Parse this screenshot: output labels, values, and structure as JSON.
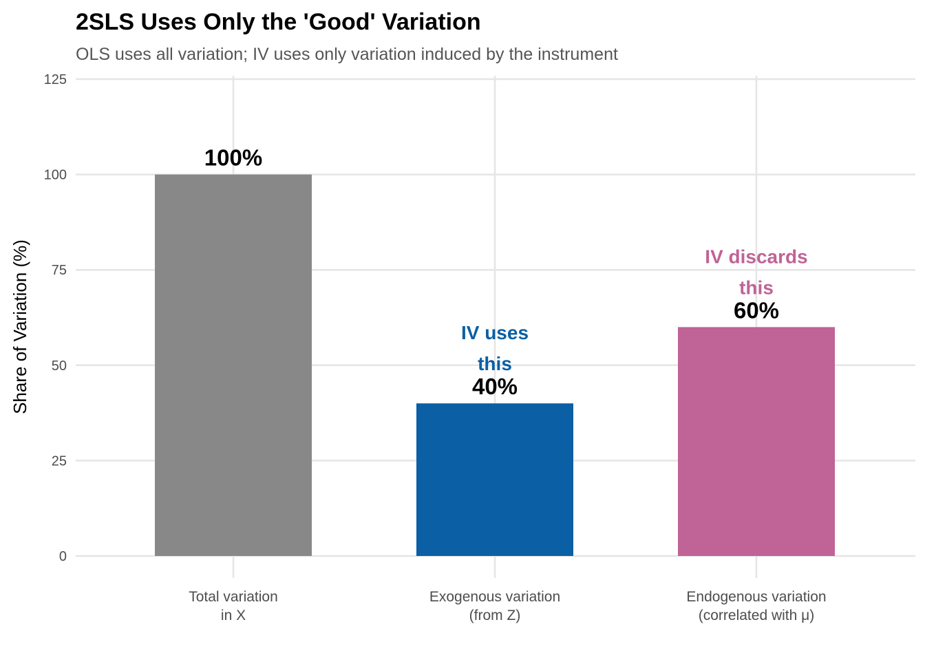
{
  "chart_data": {
    "type": "bar",
    "title": "2SLS Uses Only the 'Good' Variation",
    "subtitle": "OLS uses all variation; IV uses only variation induced by the instrument",
    "xlabel": "",
    "ylabel": "Share of Variation (%)",
    "ylim": [
      0,
      125
    ],
    "yticks": [
      0,
      25,
      50,
      75,
      100,
      125
    ],
    "grid": true,
    "categories": [
      [
        "Total variation",
        "in X"
      ],
      [
        "Exogenous variation",
        "(from Z)"
      ],
      [
        "Endogenous variation",
        "(correlated with μ)"
      ]
    ],
    "values": [
      100,
      40,
      60
    ],
    "value_labels": [
      "100%",
      "40%",
      "60%"
    ],
    "colors": [
      "#888888",
      "#0B5FA5",
      "#C06396"
    ],
    "annotations": [
      null,
      {
        "lines": [
          "IV uses",
          "this"
        ],
        "color": "#0B5FA5"
      },
      {
        "lines": [
          "IV discards",
          "this"
        ],
        "color": "#C06396"
      }
    ]
  }
}
